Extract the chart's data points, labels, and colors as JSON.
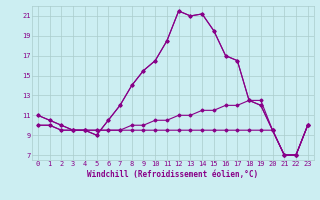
{
  "xlabel": "Windchill (Refroidissement éolien,°C)",
  "x_hours": [
    0,
    1,
    2,
    3,
    4,
    5,
    6,
    7,
    8,
    9,
    10,
    11,
    12,
    13,
    14,
    15,
    16,
    17,
    18,
    19,
    20,
    21,
    22,
    23
  ],
  "y_main": [
    11,
    10.5,
    10,
    9.5,
    9.5,
    9.0,
    10.5,
    12.0,
    14.0,
    15.5,
    16.5,
    18.5,
    21.5,
    21.0,
    21.2,
    19.5,
    17.0,
    16.5,
    12.5,
    12.0,
    9.5,
    7.0,
    7.0,
    10.0
  ],
  "y_mid": [
    11,
    10.5,
    10,
    9.5,
    9.5,
    9.0,
    10.5,
    12.0,
    14.0,
    15.5,
    16.5,
    18.5,
    21.5,
    21.0,
    21.2,
    19.5,
    17.0,
    16.5,
    12.5,
    12.0,
    9.5,
    7.0,
    7.0,
    10.0
  ],
  "y_rising": [
    10.0,
    10.0,
    9.5,
    9.5,
    9.5,
    9.5,
    9.5,
    9.5,
    10.0,
    10.0,
    10.5,
    10.5,
    11.0,
    11.0,
    11.5,
    11.5,
    12.0,
    12.0,
    12.5,
    12.5,
    9.5,
    7.0,
    7.0,
    10.0
  ],
  "y_flat": [
    10.0,
    10.0,
    9.5,
    9.5,
    9.5,
    9.5,
    9.5,
    9.5,
    9.5,
    9.5,
    9.5,
    9.5,
    9.5,
    9.5,
    9.5,
    9.5,
    9.5,
    9.5,
    9.5,
    9.5,
    9.5,
    7.0,
    7.0,
    10.0
  ],
  "ylim": [
    6.5,
    22.0
  ],
  "yticks": [
    7,
    9,
    11,
    13,
    15,
    17,
    19,
    21
  ],
  "xlim": [
    -0.5,
    23.5
  ],
  "bg_color": "#cceef2",
  "line_color": "#880088",
  "grid_color": "#aacccc",
  "font_color": "#880088",
  "tick_fontsize": 5.0,
  "xlabel_fontsize": 5.5
}
